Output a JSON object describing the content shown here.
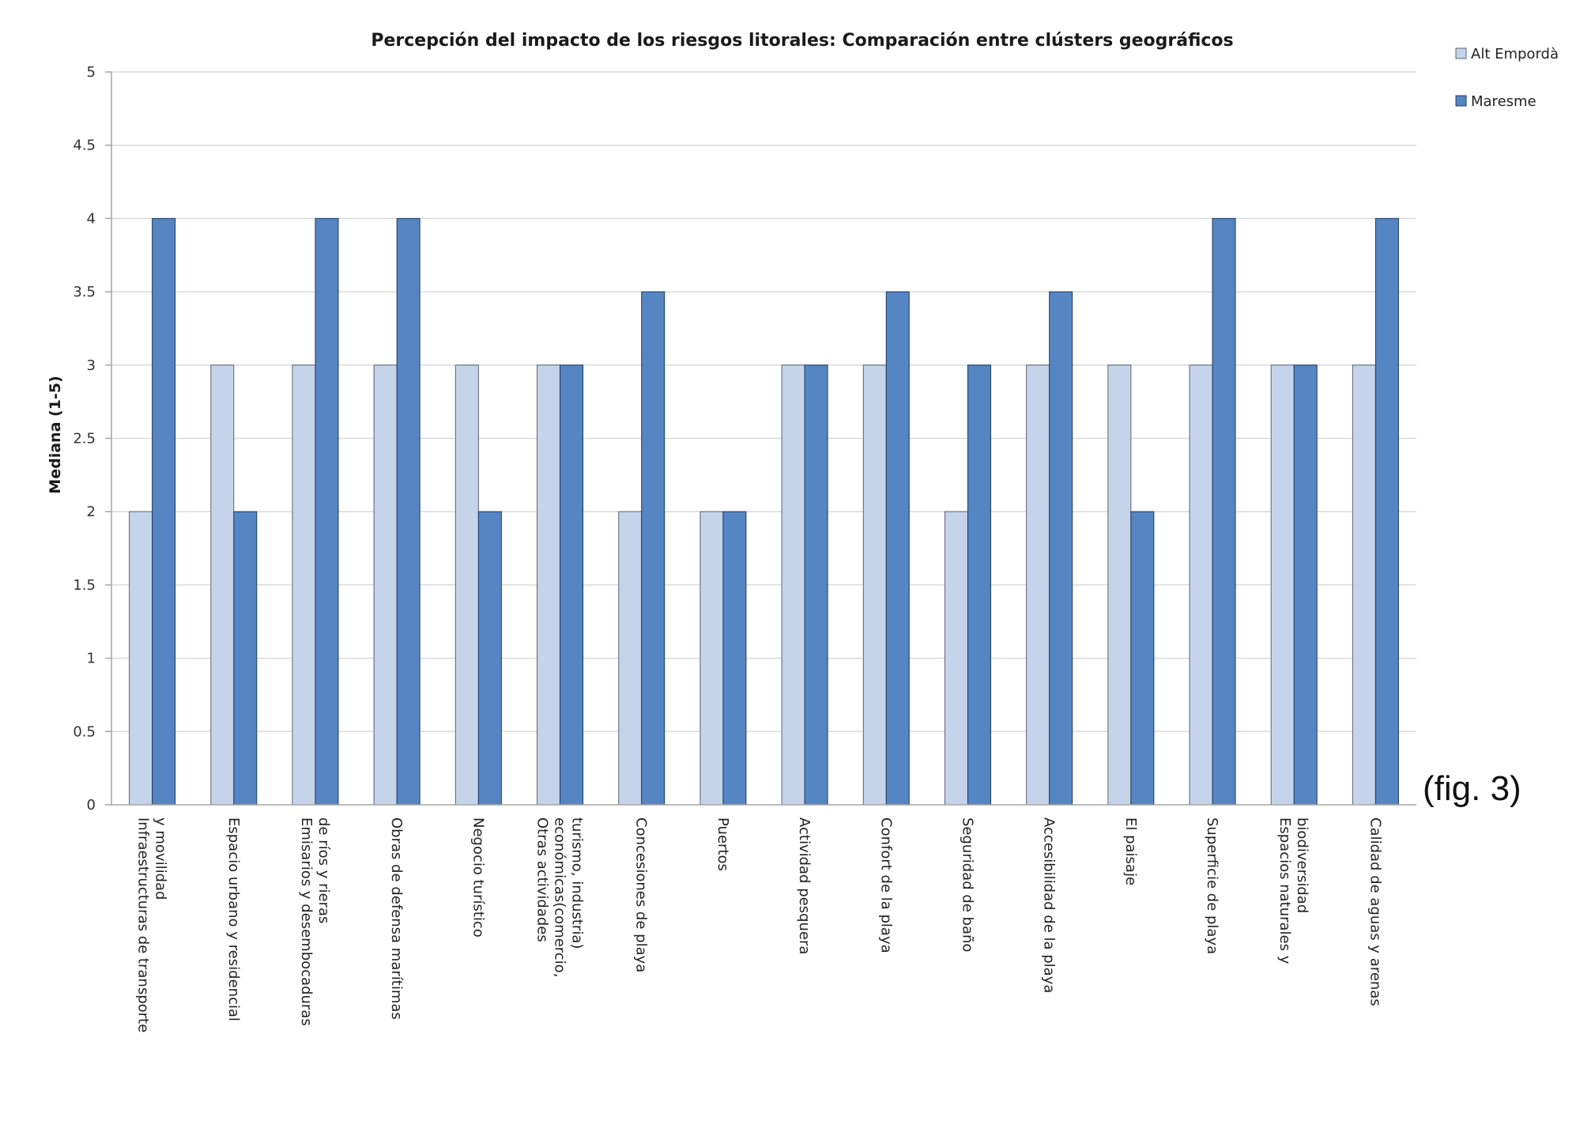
{
  "figure_label": "(fig. 3)",
  "chart_data": {
    "type": "bar",
    "title": "Percepción del impacto de los riesgos litorales: Comparación entre clústers geográficos",
    "xlabel": "",
    "ylabel": "Mediana (1-5)",
    "ylim": [
      0,
      5
    ],
    "yticks": [
      "0",
      "0.5",
      "1",
      "1.5",
      "2",
      "2.5",
      "3",
      "3.5",
      "4",
      "4.5",
      "5"
    ],
    "grid": true,
    "legend_position": "top-right",
    "categories": [
      [
        "Infraestructuras de transporte",
        "y movilidad"
      ],
      [
        "Espacio urbano y residencial"
      ],
      [
        "Emisarios y desembocaduras",
        "de ríos y rieras"
      ],
      [
        "Obras de defensa marítimas"
      ],
      [
        "Negocio turístico"
      ],
      [
        "Otras actividades",
        "económicas(comercio,",
        "turismo, industria)"
      ],
      [
        "Concesiones de playa"
      ],
      [
        "Puertos"
      ],
      [
        "Actividad pesquera"
      ],
      [
        "Confort de la playa"
      ],
      [
        "Seguridad de baño"
      ],
      [
        "Accesibilidad de la playa"
      ],
      [
        "El paisaje"
      ],
      [
        "Superficie de playa"
      ],
      [
        "Espacios naturales y",
        "biodiversidad"
      ],
      [
        "Calidad de aguas y arenas"
      ]
    ],
    "series": [
      {
        "name": "Alt Empordà",
        "color": "#c5d4ea",
        "values": [
          2,
          3,
          3,
          3,
          3,
          3,
          2,
          2,
          3,
          3,
          2,
          3,
          3,
          3,
          3,
          3
        ]
      },
      {
        "name": "Maresme",
        "color": "#5585c3",
        "values": [
          4,
          2,
          4,
          4,
          2,
          3,
          3.5,
          2,
          3,
          3.5,
          3,
          3.5,
          2,
          4,
          3,
          4
        ]
      }
    ]
  }
}
